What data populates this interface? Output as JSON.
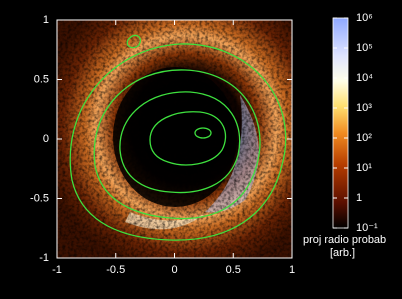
{
  "chart_data": {
    "type": "heatmap",
    "xlim": [
      -1,
      1
    ],
    "ylim": [
      -1,
      1
    ],
    "xticks": [
      -1,
      -0.5,
      0,
      0.5,
      1
    ],
    "yticks": [
      -1,
      -0.5,
      0,
      0.5,
      1
    ],
    "colorbar": {
      "scale": "log",
      "lim": [
        0.1,
        1000000
      ],
      "ticks": [
        {
          "value": 0.1,
          "label": "10⁻¹"
        },
        1,
        {
          "value": 10,
          "label": "10¹"
        },
        {
          "value": 100,
          "label": "10²"
        },
        {
          "value": 1000,
          "label": "10³"
        },
        {
          "value": 10000,
          "label": "10⁴"
        },
        {
          "value": 100000,
          "label": "10⁵"
        },
        {
          "value": 1000000,
          "label": "10⁶"
        }
      ],
      "label": [
        "proj radio probab",
        "[arb.]"
      ]
    }
  }
}
